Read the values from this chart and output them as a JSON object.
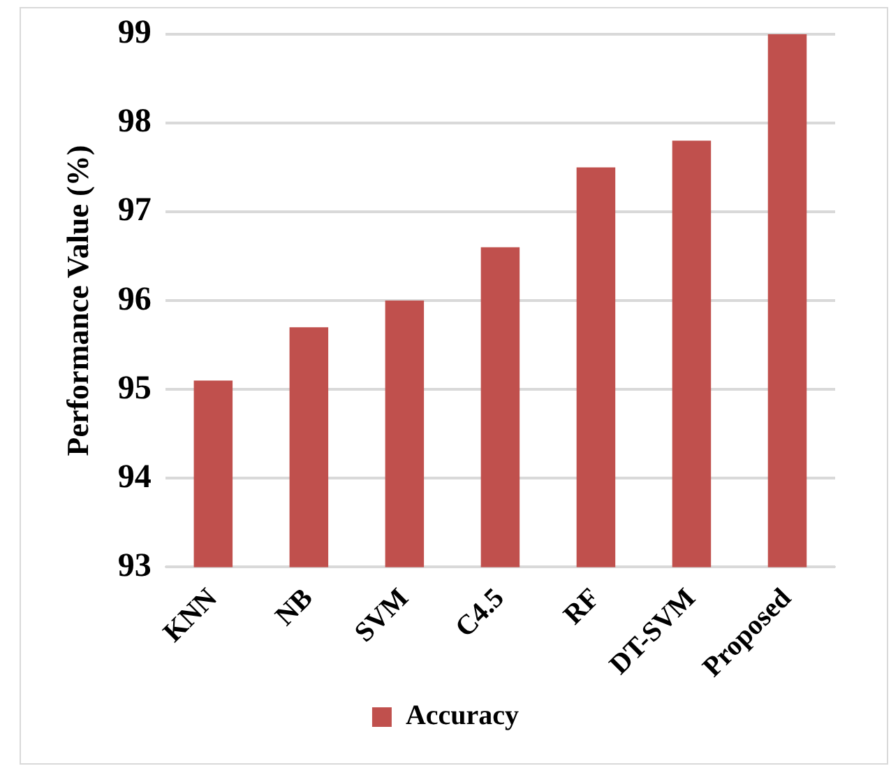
{
  "chart_data": {
    "type": "bar",
    "ylabel": "Performance Value (%)",
    "categories": [
      "KNN",
      "NB",
      "SVM",
      "C4.5",
      "RF",
      "DT-SVM",
      "Proposed"
    ],
    "series": [
      {
        "name": "Accuracy",
        "color": "#c0504d",
        "values": [
          95.1,
          95.7,
          96.0,
          96.6,
          97.5,
          97.8,
          99.0
        ]
      }
    ],
    "ylim": [
      93,
      99
    ],
    "yticks": [
      93,
      94,
      95,
      96,
      97,
      98,
      99
    ],
    "grid": "y",
    "legend": "bottom"
  }
}
